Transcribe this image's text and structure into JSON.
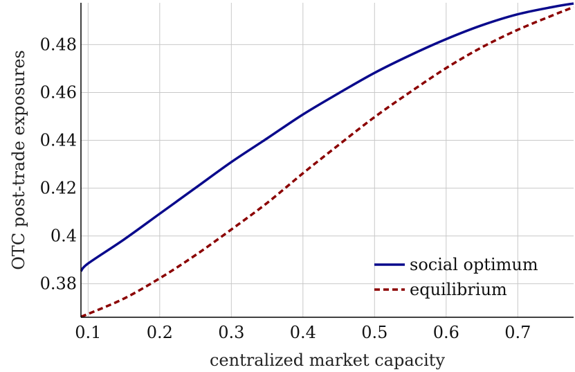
{
  "chart_data": {
    "type": "line",
    "title": "",
    "xlabel": "centralized market capacity",
    "ylabel": "OTC post-trade exposures",
    "xlim": [
      0.09,
      0.778
    ],
    "ylim": [
      0.366,
      0.4975
    ],
    "xticks": [
      0.1,
      0.2,
      0.3,
      0.4,
      0.5,
      0.6,
      0.7
    ],
    "xtick_labels": [
      "0.1",
      "0.2",
      "0.3",
      "0.4",
      "0.5",
      "0.6",
      "0.7"
    ],
    "yticks": [
      0.38,
      0.4,
      0.42,
      0.44,
      0.46,
      0.48
    ],
    "ytick_labels": [
      "0.38",
      "0.4",
      "0.42",
      "0.44",
      "0.46",
      "0.48"
    ],
    "grid": true,
    "legend_position": "bottom-right",
    "series": [
      {
        "name": "social optimum",
        "color": "#0a0a8c",
        "style": "solid",
        "x": [
          0.09,
          0.1,
          0.15,
          0.2,
          0.25,
          0.3,
          0.35,
          0.4,
          0.45,
          0.5,
          0.55,
          0.6,
          0.65,
          0.7,
          0.75,
          0.778
        ],
        "y": [
          0.3853,
          0.3885,
          0.3985,
          0.4093,
          0.4201,
          0.4309,
          0.4408,
          0.4508,
          0.4597,
          0.4682,
          0.4756,
          0.4823,
          0.4881,
          0.4927,
          0.4958,
          0.4972
        ]
      },
      {
        "name": "equilibrium",
        "color": "#8b0000",
        "style": "dashed",
        "x": [
          0.09,
          0.1,
          0.15,
          0.2,
          0.25,
          0.3,
          0.35,
          0.4,
          0.45,
          0.5,
          0.55,
          0.6,
          0.65,
          0.7,
          0.75,
          0.778
        ],
        "y": [
          0.3662,
          0.3674,
          0.3738,
          0.3823,
          0.392,
          0.4027,
          0.4138,
          0.4262,
          0.4381,
          0.4497,
          0.4602,
          0.4702,
          0.4789,
          0.4862,
          0.4924,
          0.4957
        ]
      }
    ]
  }
}
